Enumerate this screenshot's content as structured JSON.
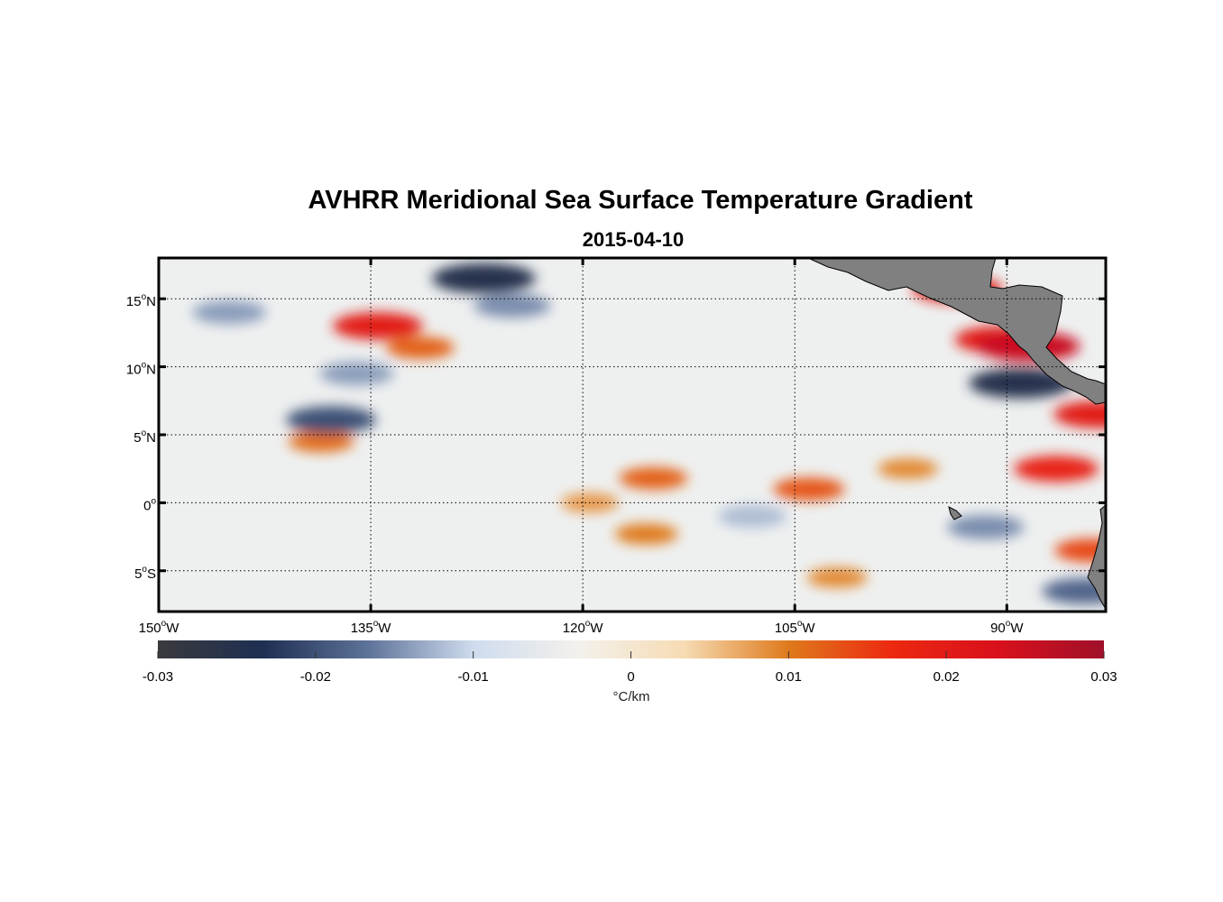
{
  "title": "AVHRR Meridional Sea Surface Temperature Gradient",
  "subtitle": "2015-04-10",
  "map": {
    "lon_range": [
      -150,
      -83
    ],
    "lat_range": [
      -8,
      18
    ],
    "lon_ticks": [
      {
        "value": -150,
        "num": "150",
        "hemi": "W"
      },
      {
        "value": -135,
        "num": "135",
        "hemi": "W"
      },
      {
        "value": -120,
        "num": "120",
        "hemi": "W"
      },
      {
        "value": -105,
        "num": "105",
        "hemi": "W"
      },
      {
        "value": -90,
        "num": "90",
        "hemi": "W"
      }
    ],
    "lat_ticks": [
      {
        "value": 15,
        "num": "15",
        "hemi": "N"
      },
      {
        "value": 10,
        "num": "10",
        "hemi": "N"
      },
      {
        "value": 5,
        "num": "5",
        "hemi": "N"
      },
      {
        "value": 0,
        "num": "0",
        "hemi": ""
      },
      {
        "value": -5,
        "num": "5",
        "hemi": "S"
      }
    ],
    "degree_symbol": "o",
    "gridlines": true,
    "land_color": "#808080",
    "features": [
      {
        "lon": -134.5,
        "lat": 13.0,
        "value": 0.02
      },
      {
        "lon": -131.5,
        "lat": 11.4,
        "value": 0.012
      },
      {
        "lon": -138.5,
        "lat": 4.5,
        "value": 0.011
      },
      {
        "lon": -137.8,
        "lat": 6.1,
        "value": -0.02
      },
      {
        "lon": -145.0,
        "lat": 14.0,
        "value": -0.014
      },
      {
        "lon": -127.0,
        "lat": 16.5,
        "value": -0.025
      },
      {
        "lon": -125.0,
        "lat": 14.5,
        "value": -0.015
      },
      {
        "lon": -136.0,
        "lat": 9.5,
        "value": -0.014
      },
      {
        "lon": -115.0,
        "lat": 1.8,
        "value": 0.012
      },
      {
        "lon": -104.0,
        "lat": 1.0,
        "value": 0.013
      },
      {
        "lon": -97.0,
        "lat": 2.5,
        "value": 0.009
      },
      {
        "lon": -119.5,
        "lat": 0.0,
        "value": 0.008
      },
      {
        "lon": -115.5,
        "lat": -2.3,
        "value": 0.01
      },
      {
        "lon": -90.5,
        "lat": 12.0,
        "value": 0.02
      },
      {
        "lon": -88.5,
        "lat": 11.5,
        "value": 0.025
      },
      {
        "lon": -93.5,
        "lat": 15.7,
        "value": 0.02
      },
      {
        "lon": -86.5,
        "lat": 2.5,
        "value": 0.018
      },
      {
        "lon": -84.0,
        "lat": -3.5,
        "value": 0.014
      },
      {
        "lon": -83.5,
        "lat": 6.5,
        "value": 0.02
      },
      {
        "lon": -89.0,
        "lat": 8.8,
        "value": -0.025
      },
      {
        "lon": -91.5,
        "lat": -1.8,
        "value": -0.015
      },
      {
        "lon": -84.5,
        "lat": -6.5,
        "value": -0.018
      },
      {
        "lon": -108.0,
        "lat": -1.0,
        "value": -0.012
      },
      {
        "lon": -102.0,
        "lat": -5.5,
        "value": 0.009
      }
    ]
  },
  "colorbar": {
    "min": -0.03,
    "max": 0.03,
    "ticks": [
      {
        "value": -0.03,
        "label": "-0.03"
      },
      {
        "value": -0.02,
        "label": "-0.02"
      },
      {
        "value": -0.01,
        "label": "-0.01"
      },
      {
        "value": 0,
        "label": "0"
      },
      {
        "value": 0.01,
        "label": "0.01"
      },
      {
        "value": 0.02,
        "label": "0.02"
      },
      {
        "value": 0.03,
        "label": "0.03"
      }
    ],
    "unit": "°C/km",
    "stops": [
      "#3a3a3e",
      "#1e2f52",
      "#5e7399",
      "#cfdcee",
      "#f3f1ec",
      "#f6dcb4",
      "#df7a1c",
      "#ec2810",
      "#d8101c",
      "#a0102a"
    ]
  }
}
